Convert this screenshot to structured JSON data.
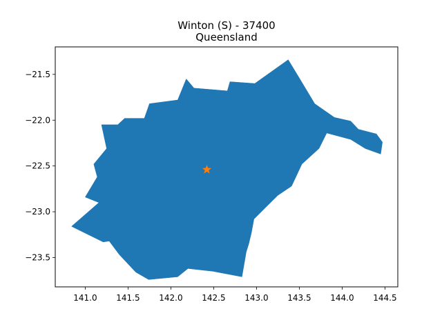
{
  "chart_data": {
    "type": "map",
    "title_line1": "Winton (S) - 37400",
    "title_line2": "Queensland",
    "xlim": [
      140.65,
      144.65
    ],
    "ylim": [
      -23.82,
      -21.2
    ],
    "x_ticks": [
      141.0,
      141.5,
      142.0,
      142.5,
      143.0,
      143.5,
      144.0,
      144.5
    ],
    "x_tick_labels": [
      "141.0",
      "141.5",
      "142.0",
      "142.5",
      "143.0",
      "143.5",
      "144.0",
      "144.5"
    ],
    "y_ticks": [
      -21.5,
      -22.0,
      -22.5,
      -23.0,
      -23.5
    ],
    "y_tick_labels": [
      "−21.5",
      "−22.0",
      "−22.5",
      "−23.0",
      "−23.5"
    ],
    "region": {
      "fill": "#1f77b4",
      "boundary": [
        [
          141.21,
          -23.33
        ],
        [
          140.84,
          -23.16
        ],
        [
          141.16,
          -22.9
        ],
        [
          141.0,
          -22.84
        ],
        [
          141.14,
          -22.62
        ],
        [
          141.1,
          -22.48
        ],
        [
          141.25,
          -22.31
        ],
        [
          141.19,
          -22.05
        ],
        [
          141.38,
          -22.05
        ],
        [
          141.46,
          -21.98
        ],
        [
          141.69,
          -21.98
        ],
        [
          141.75,
          -21.82
        ],
        [
          142.08,
          -21.78
        ],
        [
          142.18,
          -21.55
        ],
        [
          142.27,
          -21.65
        ],
        [
          142.66,
          -21.68
        ],
        [
          142.69,
          -21.58
        ],
        [
          142.98,
          -21.6
        ],
        [
          143.37,
          -21.34
        ],
        [
          143.5,
          -21.54
        ],
        [
          143.68,
          -21.82
        ],
        [
          143.91,
          -21.97
        ],
        [
          144.1,
          -22.01
        ],
        [
          144.19,
          -22.1
        ],
        [
          144.4,
          -22.15
        ],
        [
          144.47,
          -22.24
        ],
        [
          144.45,
          -22.37
        ],
        [
          144.27,
          -22.31
        ],
        [
          144.1,
          -22.21
        ],
        [
          143.82,
          -22.14
        ],
        [
          143.73,
          -22.31
        ],
        [
          143.53,
          -22.48
        ],
        [
          143.41,
          -22.72
        ],
        [
          143.25,
          -22.82
        ],
        [
          143.11,
          -22.95
        ],
        [
          142.97,
          -23.08
        ],
        [
          142.94,
          -23.23
        ],
        [
          142.91,
          -23.35
        ],
        [
          142.88,
          -23.44
        ],
        [
          142.86,
          -23.55
        ],
        [
          142.83,
          -23.71
        ],
        [
          142.49,
          -23.65
        ],
        [
          142.2,
          -23.62
        ],
        [
          142.08,
          -23.71
        ],
        [
          141.74,
          -23.74
        ],
        [
          141.59,
          -23.66
        ],
        [
          141.4,
          -23.47
        ],
        [
          141.28,
          -23.32
        ]
      ]
    },
    "marker": {
      "lon": 142.42,
      "lat": -22.54,
      "symbol": "star",
      "color": "#ff7f0e"
    }
  }
}
